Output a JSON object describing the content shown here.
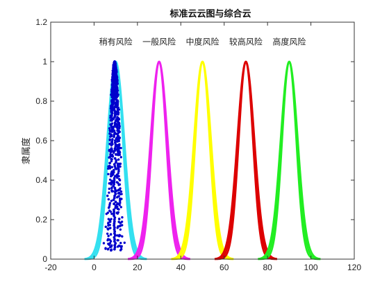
{
  "chart_data": {
    "type": "line",
    "title": "标准云云图与综合云",
    "xlabel": "",
    "ylabel": "隶属度",
    "xlim": [
      -20,
      120
    ],
    "ylim": [
      0,
      1.2
    ],
    "xticks": [
      -20,
      0,
      20,
      40,
      60,
      80,
      100,
      120
    ],
    "yticks": [
      0,
      0.2,
      0.4,
      0.6,
      0.8,
      1,
      1.2
    ],
    "xtick_labels": [
      "-20",
      "0",
      "20",
      "40",
      "60",
      "80",
      "100",
      "120"
    ],
    "ytick_labels": [
      "0",
      "0.2",
      "0.4",
      "0.6",
      "0.8",
      "1",
      "1.2"
    ],
    "grid": false,
    "series": [
      {
        "label": "稍有风险",
        "center": 10,
        "sigma": 3.6,
        "color": "#33e0f0"
      },
      {
        "label": "一般风险",
        "center": 30,
        "sigma": 3.6,
        "color": "#ee22ee"
      },
      {
        "label": "中度风险",
        "center": 50,
        "sigma": 3.6,
        "color": "#ffff00"
      },
      {
        "label": "较高风险",
        "center": 70,
        "sigma": 3.6,
        "color": "#dd0000"
      },
      {
        "label": "高度风险",
        "center": 90,
        "sigma": 3.6,
        "color": "#22ee22"
      }
    ],
    "label_y": 1.1,
    "composite_cloud": {
      "center": 9.5,
      "sigma": 1.6,
      "color": "#0000cc"
    }
  }
}
